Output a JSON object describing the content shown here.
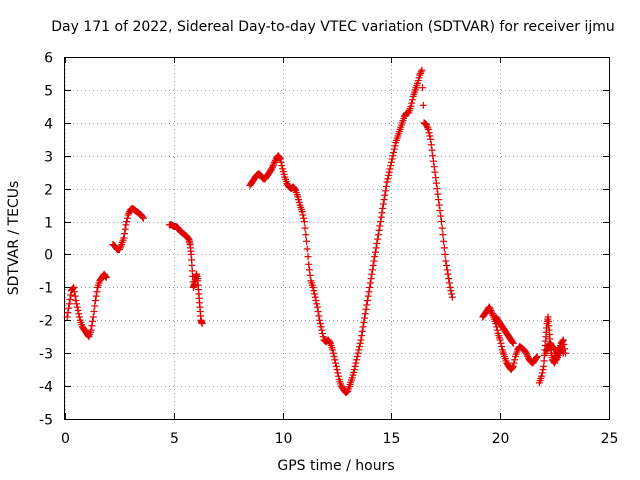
{
  "chart_data": {
    "type": "scatter",
    "title": "Day 171 of 2022, Sidereal Day-to-day VTEC variation (SDTVAR) for receiver ijmu",
    "xlabel": "GPS time / hours",
    "ylabel": "SDTVAR / TECUs",
    "xlim": [
      0,
      25
    ],
    "ylim": [
      -5,
      6
    ],
    "xticks": [
      0,
      5,
      10,
      15,
      20,
      25
    ],
    "yticks": [
      -5,
      -4,
      -3,
      -2,
      -1,
      0,
      1,
      2,
      3,
      4,
      5,
      6
    ],
    "grid": true,
    "marker": "plus",
    "color": "#e00000",
    "series": [
      {
        "name": "SDTVAR",
        "segments": [
          [
            [
              0.1,
              -1.9
            ],
            [
              0.2,
              -1.5
            ],
            [
              0.3,
              -1.1
            ],
            [
              0.4,
              -1.0
            ],
            [
              0.5,
              -1.4
            ],
            [
              0.6,
              -1.7
            ],
            [
              0.7,
              -2.0
            ],
            [
              0.8,
              -2.2
            ],
            [
              0.9,
              -2.3
            ],
            [
              1.0,
              -2.4
            ],
            [
              1.1,
              -2.5
            ],
            [
              1.2,
              -2.3
            ],
            [
              1.3,
              -1.9
            ],
            [
              1.4,
              -1.4
            ],
            [
              1.5,
              -1.0
            ],
            [
              1.6,
              -0.8
            ],
            [
              1.7,
              -0.7
            ],
            [
              1.8,
              -0.6
            ],
            [
              1.9,
              -0.7
            ]
          ],
          [
            [
              2.2,
              0.3
            ],
            [
              2.3,
              0.25
            ],
            [
              2.4,
              0.15
            ],
            [
              2.5,
              0.15
            ],
            [
              2.6,
              0.3
            ],
            [
              2.7,
              0.5
            ],
            [
              2.8,
              0.9
            ],
            [
              2.9,
              1.2
            ],
            [
              3.0,
              1.35
            ],
            [
              3.1,
              1.4
            ],
            [
              3.2,
              1.35
            ],
            [
              3.3,
              1.3
            ],
            [
              3.4,
              1.25
            ],
            [
              3.5,
              1.2
            ],
            [
              3.6,
              1.1
            ]
          ],
          [
            [
              4.8,
              0.9
            ],
            [
              4.9,
              0.9
            ],
            [
              5.0,
              0.85
            ],
            [
              5.1,
              0.85
            ],
            [
              5.2,
              0.8
            ],
            [
              5.3,
              0.7
            ],
            [
              5.4,
              0.65
            ],
            [
              5.5,
              0.6
            ],
            [
              5.6,
              0.55
            ],
            [
              5.7,
              0.45
            ],
            [
              5.75,
              0.3
            ],
            [
              5.8,
              0.0
            ],
            [
              5.85,
              -0.5
            ],
            [
              5.9,
              -1.0
            ],
            [
              5.95,
              -0.9
            ],
            [
              6.0,
              -0.7
            ],
            [
              6.05,
              -0.6
            ],
            [
              6.1,
              -0.8
            ],
            [
              6.15,
              -1.2
            ],
            [
              6.2,
              -1.6
            ],
            [
              6.25,
              -2.0
            ],
            [
              6.3,
              -2.1
            ]
          ],
          [
            [
              8.5,
              2.1
            ],
            [
              8.6,
              2.2
            ],
            [
              8.7,
              2.3
            ],
            [
              8.8,
              2.4
            ],
            [
              8.9,
              2.45
            ],
            [
              9.0,
              2.4
            ],
            [
              9.1,
              2.3
            ],
            [
              9.2,
              2.3
            ],
            [
              9.3,
              2.4
            ],
            [
              9.4,
              2.5
            ],
            [
              9.5,
              2.6
            ],
            [
              9.6,
              2.75
            ],
            [
              9.7,
              2.9
            ],
            [
              9.8,
              3.0
            ],
            [
              9.9,
              2.9
            ],
            [
              10.0,
              2.6
            ],
            [
              10.1,
              2.35
            ],
            [
              10.2,
              2.15
            ],
            [
              10.3,
              2.05
            ],
            [
              10.4,
              2.0
            ],
            [
              10.5,
              2.05
            ],
            [
              10.6,
              1.95
            ],
            [
              10.7,
              1.75
            ],
            [
              10.8,
              1.5
            ],
            [
              10.9,
              1.3
            ],
            [
              11.0,
              1.0
            ],
            [
              11.1,
              0.4
            ],
            [
              11.2,
              -0.3
            ],
            [
              11.3,
              -0.8
            ],
            [
              11.4,
              -1.0
            ],
            [
              11.5,
              -1.3
            ],
            [
              11.6,
              -1.6
            ],
            [
              11.7,
              -2.0
            ],
            [
              11.8,
              -2.3
            ],
            [
              11.9,
              -2.6
            ],
            [
              12.0,
              -2.65
            ],
            [
              12.1,
              -2.6
            ],
            [
              12.2,
              -2.7
            ],
            [
              12.3,
              -2.9
            ],
            [
              12.4,
              -3.2
            ],
            [
              12.5,
              -3.5
            ],
            [
              12.6,
              -3.8
            ],
            [
              12.7,
              -4.0
            ],
            [
              12.8,
              -4.1
            ],
            [
              12.9,
              -4.2
            ],
            [
              13.0,
              -4.15
            ],
            [
              13.1,
              -3.95
            ],
            [
              13.2,
              -3.75
            ],
            [
              13.3,
              -3.5
            ],
            [
              13.4,
              -3.2
            ],
            [
              13.5,
              -2.9
            ],
            [
              13.6,
              -2.6
            ],
            [
              13.7,
              -2.2
            ],
            [
              13.8,
              -1.8
            ],
            [
              13.9,
              -1.4
            ],
            [
              14.0,
              -1.0
            ],
            [
              14.1,
              -0.6
            ],
            [
              14.2,
              -0.2
            ],
            [
              14.3,
              0.2
            ],
            [
              14.4,
              0.6
            ],
            [
              14.5,
              1.0
            ],
            [
              14.6,
              1.4
            ],
            [
              14.7,
              1.8
            ],
            [
              14.8,
              2.2
            ],
            [
              14.9,
              2.5
            ],
            [
              15.0,
              2.8
            ],
            [
              15.1,
              3.1
            ],
            [
              15.2,
              3.4
            ],
            [
              15.3,
              3.6
            ],
            [
              15.4,
              3.8
            ],
            [
              15.5,
              4.0
            ],
            [
              15.6,
              4.2
            ],
            [
              15.7,
              4.3
            ],
            [
              15.8,
              4.3
            ],
            [
              15.9,
              4.5
            ],
            [
              16.0,
              4.8
            ],
            [
              16.1,
              5.0
            ],
            [
              16.2,
              5.2
            ],
            [
              16.3,
              5.45
            ],
            [
              16.4,
              5.6
            ],
            [
              16.5,
              4.0
            ],
            [
              16.6,
              3.95
            ],
            [
              16.7,
              3.8
            ],
            [
              16.8,
              3.5
            ],
            [
              16.9,
              3.0
            ],
            [
              17.0,
              2.5
            ],
            [
              17.1,
              2.0
            ],
            [
              17.2,
              1.5
            ],
            [
              17.3,
              1.0
            ],
            [
              17.4,
              0.4
            ],
            [
              17.5,
              -0.2
            ],
            [
              17.6,
              -0.6
            ],
            [
              17.7,
              -1.0
            ],
            [
              17.8,
              -1.3
            ]
          ],
          [
            [
              19.2,
              -1.9
            ],
            [
              19.3,
              -1.8
            ],
            [
              19.4,
              -1.7
            ],
            [
              19.5,
              -1.6
            ],
            [
              19.6,
              -1.75
            ],
            [
              19.7,
              -1.9
            ],
            [
              19.8,
              -2.1
            ],
            [
              19.9,
              -2.4
            ],
            [
              20.0,
              -2.6
            ],
            [
              20.1,
              -2.9
            ],
            [
              20.2,
              -3.1
            ],
            [
              20.3,
              -3.3
            ],
            [
              20.4,
              -3.4
            ],
            [
              20.5,
              -3.5
            ],
            [
              20.6,
              -3.4
            ],
            [
              20.7,
              -3.1
            ],
            [
              20.8,
              -2.9
            ],
            [
              20.9,
              -2.8
            ],
            [
              21.0,
              -2.85
            ],
            [
              21.1,
              -2.9
            ],
            [
              21.2,
              -3.0
            ],
            [
              21.3,
              -3.15
            ],
            [
              21.4,
              -3.25
            ],
            [
              21.5,
              -3.3
            ],
            [
              21.6,
              -3.2
            ],
            [
              21.7,
              -3.1
            ]
          ],
          [
            [
              19.8,
              -1.9
            ],
            [
              19.9,
              -2.0
            ],
            [
              20.0,
              -2.1
            ],
            [
              20.1,
              -2.2
            ],
            [
              20.2,
              -2.3
            ],
            [
              20.3,
              -2.4
            ],
            [
              20.4,
              -2.5
            ],
            [
              20.5,
              -2.6
            ],
            [
              20.6,
              -2.7
            ]
          ],
          [
            [
              21.8,
              -3.9
            ],
            [
              21.9,
              -3.7
            ],
            [
              22.0,
              -3.4
            ],
            [
              22.05,
              -2.9
            ],
            [
              22.1,
              -2.5
            ],
            [
              22.15,
              -2.1
            ],
            [
              22.2,
              -1.9
            ],
            [
              22.25,
              -2.3
            ],
            [
              22.3,
              -2.7
            ],
            [
              22.35,
              -3.0
            ],
            [
              22.4,
              -3.2
            ],
            [
              22.5,
              -3.3
            ],
            [
              22.6,
              -3.1
            ],
            [
              22.7,
              -2.9
            ],
            [
              22.8,
              -2.7
            ],
            [
              22.9,
              -2.6
            ],
            [
              23.0,
              -3.0
            ]
          ],
          [
            [
              22.1,
              -3.0
            ],
            [
              22.2,
              -2.8
            ],
            [
              22.3,
              -2.7
            ],
            [
              22.4,
              -2.8
            ],
            [
              22.5,
              -2.9
            ],
            [
              22.6,
              -3.2
            ],
            [
              22.7,
              -3.0
            ],
            [
              22.8,
              -2.8
            ],
            [
              22.9,
              -3.0
            ]
          ]
        ]
      }
    ]
  }
}
